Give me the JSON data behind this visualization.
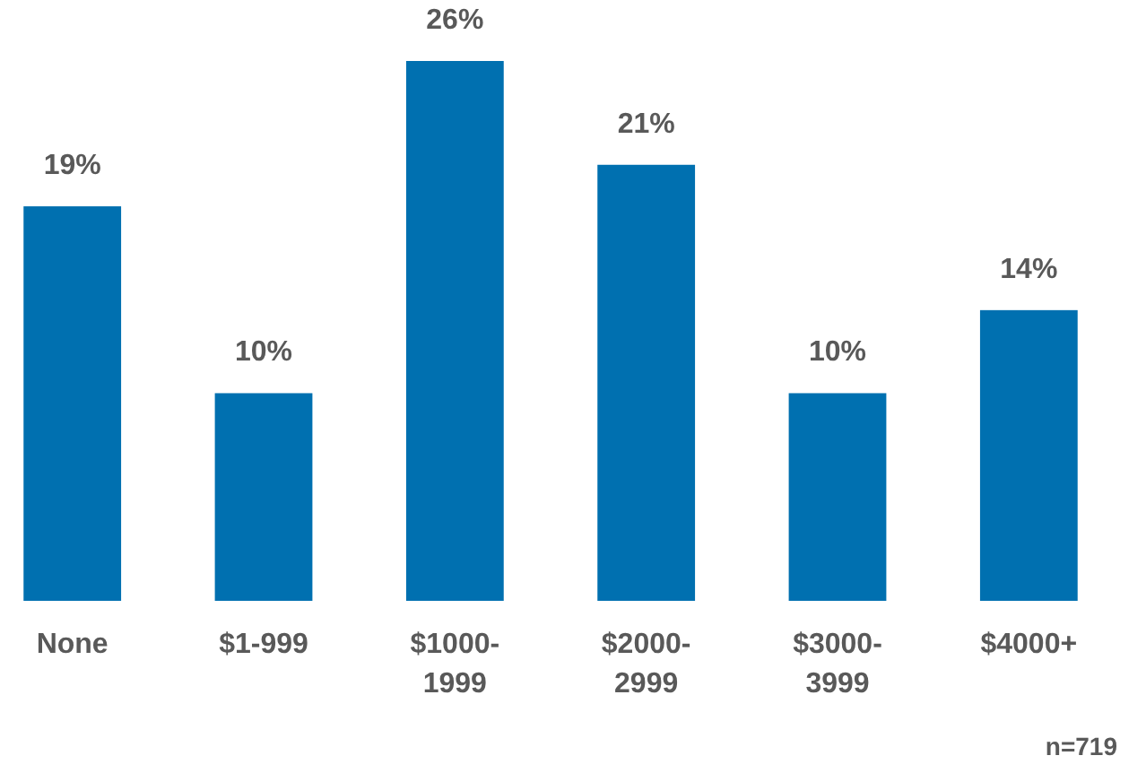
{
  "chart_data": {
    "type": "bar",
    "categories": [
      "None",
      "$1-999",
      "$1000-1999",
      "$2000-2999",
      "$3000-3999",
      "$4000+"
    ],
    "values": [
      19,
      10,
      26,
      21,
      10,
      14
    ],
    "value_labels": [
      "19%",
      "10%",
      "26%",
      "21%",
      "10%",
      "14%"
    ],
    "color": "#0070b0",
    "annotations": [
      "n=719"
    ]
  }
}
